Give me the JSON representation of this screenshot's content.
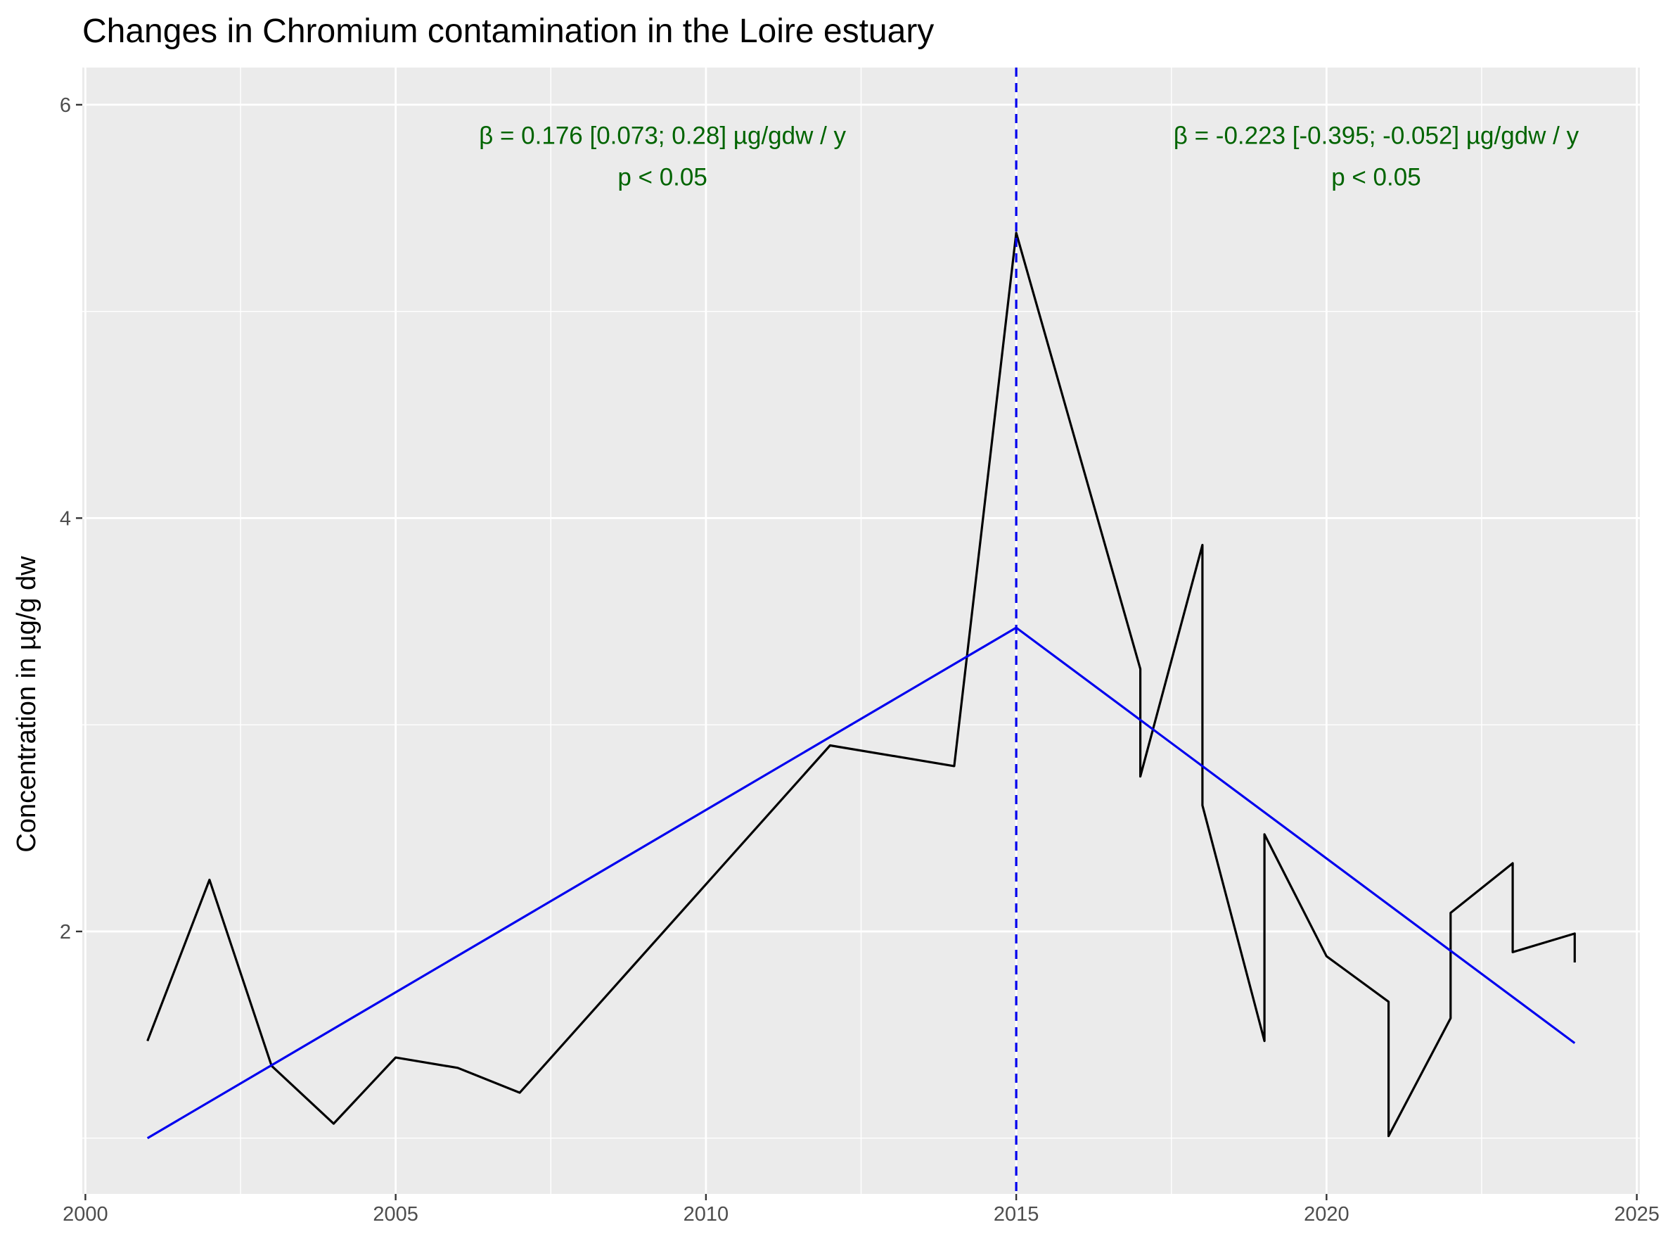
{
  "chart_data": {
    "type": "line",
    "title": "Changes in Chromium contamination in the Loire estuary",
    "xlabel": "",
    "ylabel": "Concentration in µg/g dw",
    "xlim": [
      1999.95,
      2025.05
    ],
    "ylim": [
      0.73,
      6.18
    ],
    "x_ticks": [
      2000,
      2005,
      2010,
      2015,
      2020,
      2025
    ],
    "x_tick_labels": [
      "2000",
      "2005",
      "2010",
      "2015",
      "2020",
      "2025"
    ],
    "y_ticks": [
      2,
      4,
      6
    ],
    "y_tick_labels": [
      "2",
      "4",
      "6"
    ],
    "grid": true,
    "series": [
      {
        "color": "#000000",
        "points": [
          [
            2001,
            1.47
          ],
          [
            2002,
            2.25
          ],
          [
            2003,
            1.35
          ],
          [
            2004,
            1.07
          ],
          [
            2005,
            1.39
          ],
          [
            2006,
            1.34
          ],
          [
            2007,
            1.22
          ],
          [
            2012,
            2.9
          ],
          [
            2014,
            2.8
          ],
          [
            2015,
            5.38
          ],
          [
            2017,
            3.27
          ],
          [
            2017,
            2.75
          ],
          [
            2018,
            3.87
          ],
          [
            2018,
            2.61
          ],
          [
            2019,
            1.47
          ],
          [
            2019,
            2.47
          ],
          [
            2020,
            1.88
          ],
          [
            2021,
            1.66
          ],
          [
            2021,
            1.01
          ],
          [
            2022,
            1.58
          ],
          [
            2022,
            2.09
          ],
          [
            2023,
            2.33
          ],
          [
            2023,
            1.9
          ],
          [
            2024,
            1.99
          ],
          [
            2024,
            1.85
          ]
        ]
      },
      {
        "color": "#0000ee",
        "points": [
          [
            2001,
            1.0
          ],
          [
            2015,
            3.47
          ],
          [
            2024,
            1.46
          ]
        ]
      }
    ],
    "breakpoint": {
      "x": 2015,
      "color": "#0000ee",
      "style": "dashed"
    },
    "annotations": [
      {
        "x": 2009.3,
        "y": 5.81,
        "text": "β = 0.176 [0.073; 0.28] µg/gdw / y"
      },
      {
        "x": 2009.3,
        "y": 5.61,
        "text": "p < 0.05"
      },
      {
        "x": 2020.8,
        "y": 5.81,
        "text": "β = -0.223 [-0.395; -0.052] µg/gdw / y"
      },
      {
        "x": 2020.8,
        "y": 5.61,
        "text": "p < 0.05"
      }
    ],
    "colors": {
      "panel_background": "#ebebeb",
      "grid": "#ffffff",
      "annotation": "#006400"
    }
  }
}
